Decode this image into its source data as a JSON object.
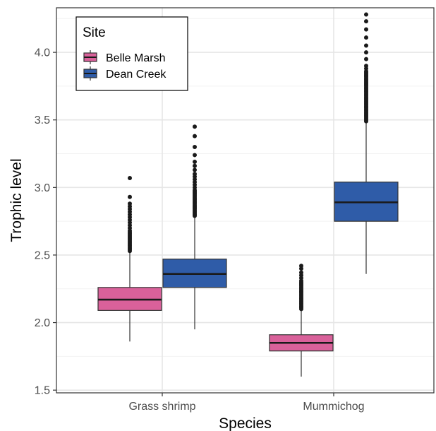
{
  "chart_data": {
    "type": "boxplot",
    "xlabel": "Species",
    "ylabel": "Trophic level",
    "categories": [
      "Grass shrimp",
      "Mummichog"
    ],
    "ylim": [
      1.48,
      4.33
    ],
    "yticks": [
      "1.5",
      "2.0",
      "2.5",
      "3.0",
      "3.5",
      "4.0"
    ],
    "grid": true,
    "legend": {
      "title": "Site",
      "placement": "top-left",
      "entries": [
        "Belle Marsh",
        "Dean Creek"
      ]
    },
    "colors": {
      "Belle Marsh": "#d9619a",
      "Dean Creek": "#2f5ca8"
    },
    "series": [
      {
        "name": "Belle Marsh",
        "boxes": [
          {
            "category": "Grass shrimp",
            "whisker_low": 1.86,
            "q1": 2.09,
            "median": 2.17,
            "q3": 2.26,
            "whisker_high": 2.52,
            "outliers": [
              2.53,
              2.54,
              2.55,
              2.56,
              2.57,
              2.58,
              2.59,
              2.6,
              2.61,
              2.62,
              2.63,
              2.64,
              2.65,
              2.66,
              2.67,
              2.68,
              2.7,
              2.72,
              2.74,
              2.76,
              2.78,
              2.8,
              2.82,
              2.84,
              2.86,
              2.88,
              2.93,
              3.07
            ]
          },
          {
            "category": "Mummichog",
            "whisker_low": 1.6,
            "q1": 1.79,
            "median": 1.85,
            "q3": 1.91,
            "whisker_high": 2.09,
            "outliers": [
              2.1,
              2.11,
              2.12,
              2.13,
              2.14,
              2.15,
              2.16,
              2.17,
              2.18,
              2.19,
              2.2,
              2.21,
              2.22,
              2.23,
              2.24,
              2.25,
              2.26,
              2.27,
              2.28,
              2.29,
              2.3,
              2.31,
              2.33,
              2.35,
              2.37,
              2.4,
              2.42
            ]
          }
        ]
      },
      {
        "name": "Dean Creek",
        "boxes": [
          {
            "category": "Grass shrimp",
            "whisker_low": 1.95,
            "q1": 2.26,
            "median": 2.36,
            "q3": 2.47,
            "whisker_high": 2.78,
            "outliers": [
              2.79,
              2.8,
              2.81,
              2.82,
              2.83,
              2.84,
              2.85,
              2.86,
              2.87,
              2.88,
              2.89,
              2.9,
              2.91,
              2.92,
              2.93,
              2.94,
              2.95,
              2.96,
              2.97,
              2.98,
              3.0,
              3.02,
              3.04,
              3.06,
              3.08,
              3.1,
              3.13,
              3.16,
              3.19,
              3.24,
              3.3,
              3.38,
              3.45
            ]
          },
          {
            "category": "Mummichog",
            "whisker_low": 2.36,
            "q1": 2.75,
            "median": 2.89,
            "q3": 3.04,
            "whisker_high": 3.48,
            "outliers": [
              3.49,
              3.5,
              3.51,
              3.52,
              3.53,
              3.54,
              3.55,
              3.56,
              3.57,
              3.58,
              3.59,
              3.6,
              3.61,
              3.62,
              3.63,
              3.64,
              3.65,
              3.66,
              3.67,
              3.68,
              3.69,
              3.7,
              3.71,
              3.72,
              3.73,
              3.74,
              3.75,
              3.76,
              3.77,
              3.78,
              3.79,
              3.8,
              3.81,
              3.82,
              3.83,
              3.84,
              3.85,
              3.86,
              3.88,
              3.9,
              3.95,
              4.0,
              4.05,
              4.11,
              4.17,
              4.23,
              4.28
            ]
          }
        ]
      }
    ]
  }
}
